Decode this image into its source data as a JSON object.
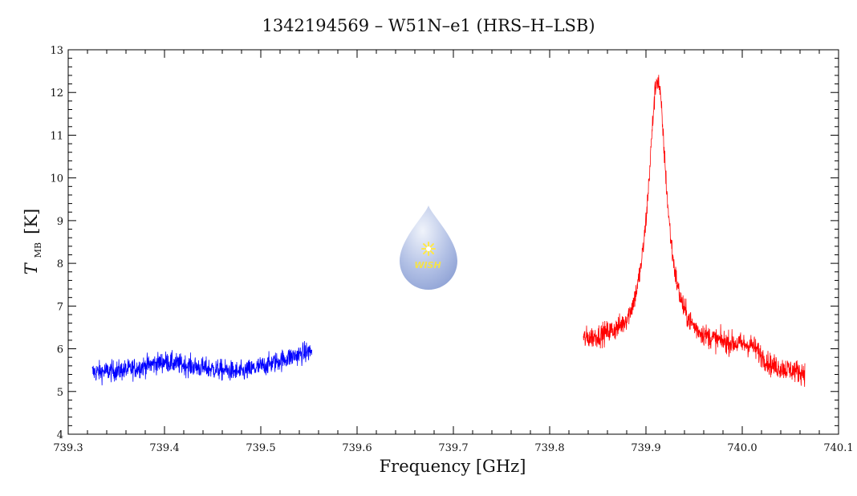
{
  "chart_data": {
    "type": "line",
    "title": "1342194569 – W51N–e1 (HRS–H–LSB)",
    "xlabel": "Frequency [GHz]",
    "ylabel": {
      "symbol": "T",
      "subscript": "MB",
      "unit": "[K]"
    },
    "xlim": [
      739.3,
      740.1
    ],
    "ylim": [
      4,
      13
    ],
    "x_ticks": [
      "739.3",
      "739.4",
      "739.5",
      "739.6",
      "739.7",
      "739.8",
      "739.9",
      "740.0",
      "740.1"
    ],
    "y_ticks": [
      "4",
      "5",
      "6",
      "7",
      "8",
      "9",
      "10",
      "11",
      "12",
      "13"
    ],
    "grid": false,
    "series": [
      {
        "color": "#0000ff",
        "x_range": [
          739.325,
          739.553
        ],
        "baseline": [
          [
            739.325,
            5.45
          ],
          [
            739.36,
            5.5
          ],
          [
            739.4,
            5.7
          ],
          [
            739.44,
            5.55
          ],
          [
            739.48,
            5.45
          ],
          [
            739.51,
            5.65
          ],
          [
            739.53,
            5.8
          ],
          [
            739.553,
            5.95
          ]
        ],
        "noise": 0.22
      },
      {
        "color": "#ff0000",
        "x_range": [
          739.835,
          740.065
        ],
        "baseline": [
          [
            739.835,
            6.1
          ],
          [
            739.86,
            6.1
          ],
          [
            739.88,
            6.0
          ],
          [
            739.96,
            6.0
          ],
          [
            739.99,
            6.0
          ],
          [
            740.01,
            6.0
          ],
          [
            740.03,
            5.55
          ],
          [
            740.065,
            5.4
          ]
        ],
        "peak": {
          "center": 739.912,
          "amplitude": 6.3,
          "hwhm": 0.0115
        },
        "noise": 0.24
      }
    ]
  },
  "logo": {
    "text": "WISH",
    "colors": {
      "drop_top": "#d9e2f3",
      "drop_bottom": "#7f95cf",
      "star": "#ffe84a"
    }
  }
}
